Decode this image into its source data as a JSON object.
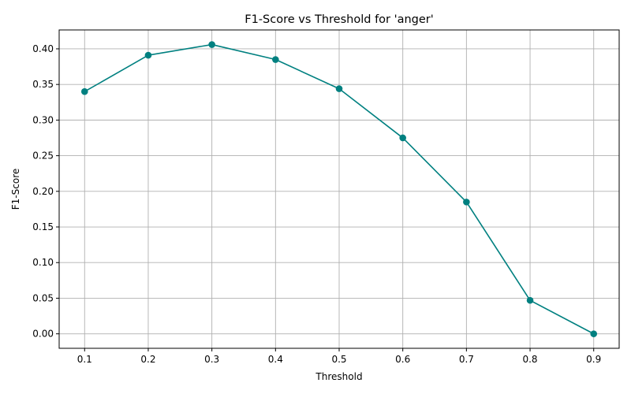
{
  "chart_data": {
    "type": "line",
    "title": "F1-Score vs Threshold for 'anger'",
    "xlabel": "Threshold",
    "ylabel": "F1-Score",
    "x": [
      0.1,
      0.2,
      0.3,
      0.4,
      0.5,
      0.6,
      0.7,
      0.8,
      0.9
    ],
    "x_tick_labels": [
      "0.1",
      "0.2",
      "0.3",
      "0.4",
      "0.5",
      "0.6",
      "0.7",
      "0.8",
      "0.9"
    ],
    "y_ticks": [
      0.0,
      0.05,
      0.1,
      0.15,
      0.2,
      0.25,
      0.3,
      0.35,
      0.4
    ],
    "y_tick_labels": [
      "0.00",
      "0.05",
      "0.10",
      "0.15",
      "0.20",
      "0.25",
      "0.30",
      "0.35",
      "0.40"
    ],
    "xlim": [
      0.06,
      0.94
    ],
    "ylim": [
      -0.0203,
      0.4265
    ],
    "grid": true,
    "legend": false,
    "series": [
      {
        "color": "#008080",
        "marker": "circle",
        "values": [
          0.34,
          0.391,
          0.406,
          0.385,
          0.344,
          0.275,
          0.185,
          0.047,
          0.0
        ]
      }
    ]
  }
}
